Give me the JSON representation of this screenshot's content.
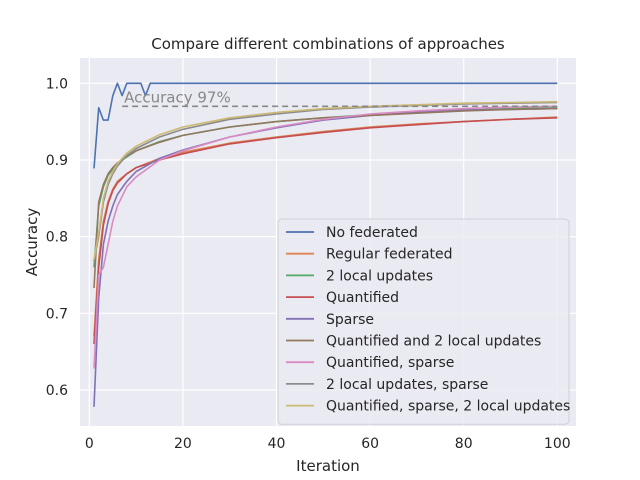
{
  "chart_data": {
    "type": "line",
    "title": "Compare different combinations of approaches",
    "xlabel": "Iteration",
    "ylabel": "Accuracy",
    "xlim": [
      -2,
      104
    ],
    "ylim": [
      0.553,
      1.033
    ],
    "xticks": [
      0,
      20,
      40,
      60,
      80,
      100
    ],
    "yticks": [
      0.6,
      0.7,
      0.8,
      0.9,
      1.0
    ],
    "xtick_labels": [
      "0",
      "20",
      "40",
      "60",
      "80",
      "100"
    ],
    "ytick_labels": [
      "0.6",
      "0.7",
      "0.8",
      "0.9",
      "1.0"
    ],
    "grid": true,
    "background": "#eaeaf2",
    "legend_position": "bottom-right",
    "annotation": {
      "text": "Accuracy 97%",
      "y": 0.97,
      "x_start": 7,
      "x_end": 100,
      "color": "#888888"
    },
    "series": [
      {
        "name": "No federated",
        "color": "#4c72b0",
        "points": [
          [
            1,
            0.889
          ],
          [
            2,
            0.968
          ],
          [
            3,
            0.952
          ],
          [
            4,
            0.952
          ],
          [
            5,
            0.984
          ],
          [
            6,
            1.0
          ],
          [
            7,
            0.984
          ],
          [
            8,
            1.0
          ],
          [
            9,
            1.0
          ],
          [
            10,
            1.0
          ],
          [
            11,
            1.0
          ],
          [
            12,
            0.984
          ],
          [
            13,
            1.0
          ],
          [
            20,
            1.0
          ],
          [
            40,
            1.0
          ],
          [
            60,
            1.0
          ],
          [
            80,
            1.0
          ],
          [
            100,
            1.0
          ]
        ]
      },
      {
        "name": "Regular federated",
        "color": "#dd8452",
        "points": [
          [
            1,
            0.67
          ],
          [
            2,
            0.77
          ],
          [
            3,
            0.82
          ],
          [
            4,
            0.846
          ],
          [
            5,
            0.862
          ],
          [
            6,
            0.872
          ],
          [
            8,
            0.882
          ],
          [
            10,
            0.89
          ],
          [
            15,
            0.902
          ],
          [
            20,
            0.91
          ],
          [
            30,
            0.922
          ],
          [
            40,
            0.93
          ],
          [
            50,
            0.937
          ],
          [
            60,
            0.943
          ],
          [
            70,
            0.947
          ],
          [
            80,
            0.95
          ],
          [
            90,
            0.953
          ],
          [
            100,
            0.956
          ]
        ]
      },
      {
        "name": "2 local updates",
        "color": "#55a868",
        "points": [
          [
            1,
            0.76
          ],
          [
            2,
            0.84
          ],
          [
            3,
            0.865
          ],
          [
            4,
            0.88
          ],
          [
            5,
            0.888
          ],
          [
            6,
            0.895
          ],
          [
            8,
            0.904
          ],
          [
            10,
            0.912
          ],
          [
            15,
            0.924
          ],
          [
            20,
            0.932
          ],
          [
            30,
            0.943
          ],
          [
            40,
            0.95
          ],
          [
            50,
            0.955
          ],
          [
            60,
            0.959
          ],
          [
            70,
            0.962
          ],
          [
            80,
            0.965
          ],
          [
            90,
            0.967
          ],
          [
            100,
            0.968
          ]
        ]
      },
      {
        "name": "Quantified",
        "color": "#c44e52",
        "points": [
          [
            1,
            0.66
          ],
          [
            2,
            0.76
          ],
          [
            3,
            0.815
          ],
          [
            4,
            0.843
          ],
          [
            5,
            0.86
          ],
          [
            6,
            0.87
          ],
          [
            8,
            0.882
          ],
          [
            10,
            0.89
          ],
          [
            15,
            0.9
          ],
          [
            20,
            0.908
          ],
          [
            30,
            0.921
          ],
          [
            40,
            0.929
          ],
          [
            50,
            0.936
          ],
          [
            60,
            0.942
          ],
          [
            70,
            0.946
          ],
          [
            80,
            0.95
          ],
          [
            90,
            0.953
          ],
          [
            100,
            0.955
          ]
        ]
      },
      {
        "name": "Sparse",
        "color": "#8172b3",
        "points": [
          [
            1,
            0.578
          ],
          [
            2,
            0.72
          ],
          [
            3,
            0.79
          ],
          [
            4,
            0.82
          ],
          [
            5,
            0.84
          ],
          [
            6,
            0.855
          ],
          [
            8,
            0.872
          ],
          [
            10,
            0.885
          ],
          [
            15,
            0.902
          ],
          [
            20,
            0.913
          ],
          [
            30,
            0.93
          ],
          [
            40,
            0.942
          ],
          [
            50,
            0.952
          ],
          [
            60,
            0.958
          ],
          [
            70,
            0.962
          ],
          [
            80,
            0.965
          ],
          [
            90,
            0.966
          ],
          [
            100,
            0.967
          ]
        ]
      },
      {
        "name": "Quantified and 2 local updates",
        "color": "#937860",
        "points": [
          [
            1,
            0.733
          ],
          [
            2,
            0.845
          ],
          [
            3,
            0.868
          ],
          [
            4,
            0.882
          ],
          [
            5,
            0.89
          ],
          [
            6,
            0.896
          ],
          [
            8,
            0.905
          ],
          [
            10,
            0.912
          ],
          [
            15,
            0.923
          ],
          [
            20,
            0.932
          ],
          [
            30,
            0.943
          ],
          [
            40,
            0.95
          ],
          [
            50,
            0.955
          ],
          [
            60,
            0.958
          ],
          [
            70,
            0.961
          ],
          [
            80,
            0.964
          ],
          [
            90,
            0.966
          ],
          [
            100,
            0.967
          ]
        ]
      },
      {
        "name": "Quantified, sparse",
        "color": "#da8bc3",
        "points": [
          [
            1,
            0.628
          ],
          [
            2,
            0.75
          ],
          [
            3,
            0.76
          ],
          [
            4,
            0.79
          ],
          [
            5,
            0.82
          ],
          [
            6,
            0.84
          ],
          [
            8,
            0.865
          ],
          [
            10,
            0.878
          ],
          [
            15,
            0.9
          ],
          [
            20,
            0.912
          ],
          [
            30,
            0.93
          ],
          [
            40,
            0.943
          ],
          [
            50,
            0.953
          ],
          [
            60,
            0.96
          ],
          [
            70,
            0.964
          ],
          [
            80,
            0.967
          ],
          [
            90,
            0.969
          ],
          [
            100,
            0.97
          ]
        ]
      },
      {
        "name": "2 local updates, sparse",
        "color": "#8c8c8c",
        "points": [
          [
            1,
            0.768
          ],
          [
            2,
            0.8
          ],
          [
            3,
            0.845
          ],
          [
            4,
            0.868
          ],
          [
            5,
            0.882
          ],
          [
            6,
            0.892
          ],
          [
            8,
            0.906
          ],
          [
            10,
            0.915
          ],
          [
            15,
            0.93
          ],
          [
            20,
            0.94
          ],
          [
            30,
            0.953
          ],
          [
            40,
            0.96
          ],
          [
            50,
            0.966
          ],
          [
            60,
            0.969
          ],
          [
            70,
            0.971
          ],
          [
            80,
            0.973
          ],
          [
            90,
            0.974
          ],
          [
            100,
            0.975
          ]
        ]
      },
      {
        "name": "Quantified, sparse, 2 local updates",
        "color": "#ccb974",
        "points": [
          [
            1,
            0.77
          ],
          [
            2,
            0.805
          ],
          [
            3,
            0.85
          ],
          [
            4,
            0.872
          ],
          [
            5,
            0.885
          ],
          [
            6,
            0.895
          ],
          [
            8,
            0.909
          ],
          [
            10,
            0.918
          ],
          [
            15,
            0.933
          ],
          [
            20,
            0.943
          ],
          [
            30,
            0.955
          ],
          [
            40,
            0.962
          ],
          [
            50,
            0.967
          ],
          [
            60,
            0.97
          ],
          [
            70,
            0.972
          ],
          [
            80,
            0.974
          ],
          [
            90,
            0.975
          ],
          [
            100,
            0.976
          ]
        ]
      }
    ]
  }
}
